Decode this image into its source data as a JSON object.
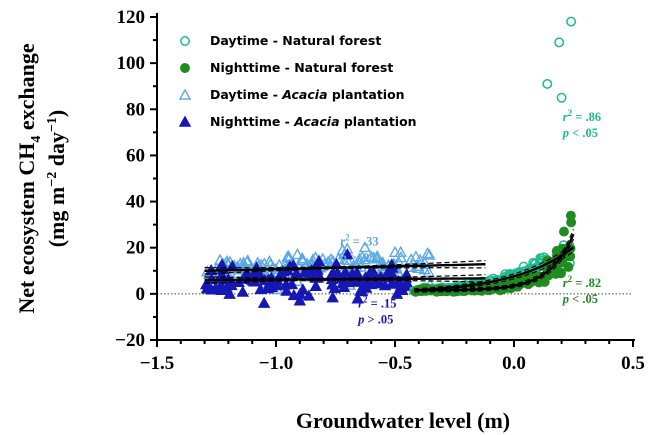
{
  "chart_data": {
    "type": "scatter",
    "xlabel": "Groundwater level (m)",
    "ylabel": {
      "pre": "Net ecosystem CH",
      "sub": "4",
      "post": " exchange",
      "line2_pre": "(mg m",
      "sup1": "−2",
      "line2_mid": " day",
      "sup2": "−1",
      "line2_post": ")"
    },
    "xlim": [
      -1.5,
      0.5
    ],
    "ylim": [
      -20,
      120
    ],
    "xticks": [
      -1.5,
      -1.0,
      -0.5,
      0.0,
      0.5
    ],
    "xtick_labels": [
      "−1.5",
      "−1.0",
      "−0.5",
      "0.0",
      "0.5"
    ],
    "yticks": [
      -20,
      0,
      20,
      40,
      60,
      80,
      100,
      120
    ],
    "ytick_labels": [
      "−20",
      "0",
      "20",
      "40",
      "60",
      "80",
      "100",
      "120"
    ],
    "zero_line": true,
    "grid": false,
    "legend_position": "top-left",
    "series": [
      {
        "key": "day_nat",
        "legend_text": "Daytime - Natural forest",
        "legend_plain": "Daytime - Natural forest",
        "legend_italic": "",
        "color": "#1fb98f",
        "marker": "circle-open",
        "x_range": [
          -0.42,
          0.24
        ],
        "fit": {
          "a": 7.6,
          "b": 3.9,
          "x_from": -0.42,
          "x_to": 0.25
        },
        "noise": 0.15,
        "count": 170,
        "seed": 11,
        "extra_points": [
          [
            0.24,
            118
          ],
          [
            0.19,
            109
          ],
          [
            0.14,
            91
          ],
          [
            0.2,
            85
          ]
        ]
      },
      {
        "key": "night_nat",
        "legend_text": "Nighttime - Natural forest",
        "legend_plain": "Nighttime - Natural forest",
        "legend_italic": "",
        "color": "#1e8c1e",
        "marker": "circle-filled",
        "x_range": [
          -0.42,
          0.24
        ],
        "fit": {
          "a": 2.0,
          "b": 10.0,
          "x_from": -0.42,
          "x_to": 0.25,
          "offset": 1.5
        },
        "noise": 0.2,
        "count": 150,
        "seed": 23,
        "extra_points": [
          [
            0.24,
            31
          ],
          [
            0.21,
            27
          ]
        ]
      },
      {
        "key": "day_aca",
        "legend_text": "Daytime - Acacia plantation",
        "legend_plain": "Daytime - ",
        "legend_italic": "Acacia",
        "legend_post": " plantation",
        "color": "#5ba8e6",
        "marker": "triangle-open",
        "x_range": [
          -1.3,
          -0.35
        ],
        "fit": {
          "a": 10.0,
          "b": 1.2,
          "x_from": -1.3,
          "x_to": -0.12,
          "linear_shape": true
        },
        "noise_abs": 3.5,
        "count": 150,
        "seed": 37,
        "extra_points": [
          [
            -0.72,
            19
          ],
          [
            -0.5,
            18
          ],
          [
            -0.6,
            16
          ],
          [
            -1.15,
            13
          ]
        ]
      },
      {
        "key": "night_aca",
        "legend_text": "Nighttime - Acacia plantation",
        "legend_plain": "Nighttime - ",
        "legend_italic": "Acacia",
        "legend_post": " plantation",
        "color": "#1717b4",
        "marker": "triangle-filled",
        "x_range": [
          -1.3,
          -0.45
        ],
        "fit": {
          "a": 6.0,
          "b": 0.3,
          "x_from": -1.3,
          "x_to": -0.12,
          "linear_shape": true
        },
        "noise_abs": 3.0,
        "count": 140,
        "seed": 53,
        "extra_points": [
          [
            -0.7,
            17
          ],
          [
            -0.82,
            14
          ],
          [
            -1.05,
            -4
          ],
          [
            -0.9,
            -3
          ]
        ]
      }
    ],
    "annotations": [
      {
        "r2": ".86",
        "p": "p < .05",
        "color": "#1fb98f",
        "x": 0.205,
        "y": 75
      },
      {
        "r2": ".82",
        "p": "p < .05",
        "color": "#1e8c1e",
        "x": 0.205,
        "y": 3
      },
      {
        "r2": ".33",
        "p": "p > .05",
        "color": "#5ba8e6",
        "x": -0.73,
        "y": 21
      },
      {
        "r2": ".15",
        "p": "p > .05",
        "color": "#1717b4",
        "x": -0.655,
        "y": -6
      }
    ]
  }
}
